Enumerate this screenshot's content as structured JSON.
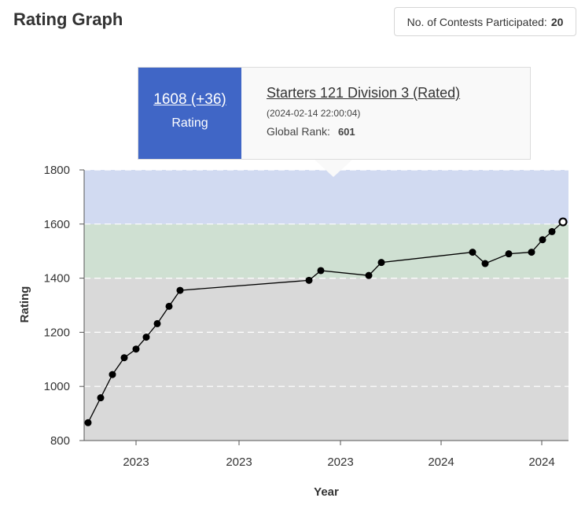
{
  "header": {
    "title": "Rating Graph",
    "contests_label": "No. of Contests Participated:",
    "contests_count": "20"
  },
  "tooltip": {
    "rating": "1608 (+36)",
    "rating_label": "Rating",
    "contest": "Starters 121 Division 3 (Rated)",
    "date": "(2024-02-14 22:00:04)",
    "rank_label": "Global Rank:",
    "rank_value": "601"
  },
  "chart_data": {
    "type": "line",
    "xlabel": "Year",
    "ylabel": "Rating",
    "ylim": [
      800,
      1800
    ],
    "yticks": [
      800,
      1000,
      1200,
      1400,
      1600,
      1800
    ],
    "x_tick_labels": [
      "2023",
      "2023",
      "2023",
      "2024",
      "2024"
    ],
    "bands": [
      {
        "from": 800,
        "to": 1400,
        "color": "#d9d9d9"
      },
      {
        "from": 1400,
        "to": 1600,
        "color": "#cfe0d2"
      },
      {
        "from": 1600,
        "to": 1800,
        "color": "#d1daf1"
      }
    ],
    "grid": "dashed horizontal",
    "series": [
      {
        "values": [
          866,
          958,
          1044,
          1106,
          1138,
          1182,
          1232,
          1296,
          1355,
          1392,
          1428,
          1410,
          1458,
          1496,
          1454,
          1490,
          1496,
          1542,
          1572,
          1608
        ]
      }
    ],
    "highlighted_point": 19,
    "line_color": "#000000",
    "point_color": "#000000"
  }
}
